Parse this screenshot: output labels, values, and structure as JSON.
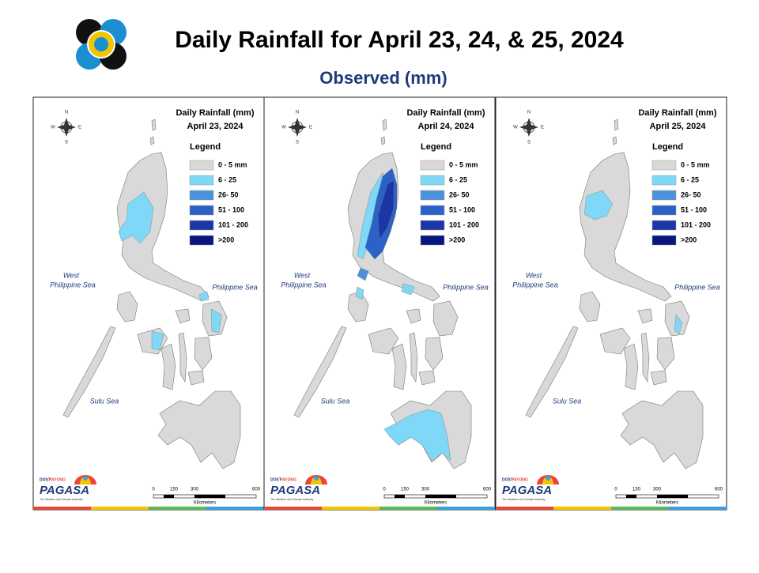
{
  "header": {
    "title": "Daily Rainfall for April 23, 24, & 25, 2024",
    "subtitle": "Observed (mm)"
  },
  "legend": {
    "title": "Legend",
    "items": [
      {
        "label": "0 - 5 mm",
        "color": "#d9d9d9"
      },
      {
        "label": "6 - 25",
        "color": "#7fd8f7"
      },
      {
        "label": "26- 50",
        "color": "#4a92dc"
      },
      {
        "label": "51 - 100",
        "color": "#2a62c8"
      },
      {
        "label": "101 - 200",
        "color": "#1c36a8"
      },
      {
        "label": ">200",
        "color": "#0a1680"
      }
    ]
  },
  "panels": [
    {
      "title": "Daily Rainfall (mm)",
      "date": "April 23, 2024"
    },
    {
      "title": "Daily Rainfall (mm)",
      "date": "April 24, 2024"
    },
    {
      "title": "Daily Rainfall (mm)",
      "date": "April 25, 2024"
    }
  ],
  "seas": {
    "west_line1": "West",
    "west_line2": "Philippine Sea",
    "east": "Philippine Sea",
    "south": "Sulu Sea"
  },
  "compass": {
    "n": "N",
    "s": "S",
    "e": "E",
    "w": "W"
  },
  "scale": {
    "ticks": [
      "0",
      "150",
      "300",
      "600"
    ],
    "unit": "Kilometers"
  },
  "logo": {
    "agency": "DOST",
    "program": "PAYONG",
    "name": "PAGASA",
    "tagline": "The Weather and Climate Authority"
  }
}
